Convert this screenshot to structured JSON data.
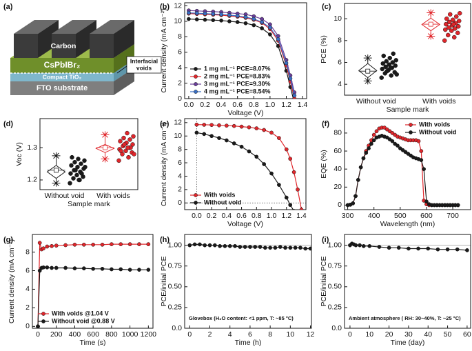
{
  "schematic": {
    "panel": "(a)",
    "layers": [
      "Carbon",
      "CsPbIBr₂",
      "Compact TiO₂",
      "FTO substrate"
    ],
    "callout": [
      "Interfacial",
      "voids"
    ]
  },
  "chart_data": [
    {
      "type": "line",
      "panel": "(b)",
      "xlabel": "Voltage (V)",
      "ylabel": "Current density (mA cm⁻²)",
      "xlim": [
        -0.05,
        1.45
      ],
      "xticks": [
        {
          "value": 0,
          "label": "0.0"
        },
        0.2,
        0.4,
        0.6,
        0.8,
        {
          "value": 1,
          "label": "1.0"
        },
        1.2,
        1.4
      ],
      "ylim": [
        0,
        12.4
      ],
      "yticks": [
        0,
        2,
        4,
        6,
        8,
        10,
        12
      ],
      "legend": "lower left",
      "x": [
        0,
        0.1,
        0.2,
        0.3,
        0.4,
        0.5,
        0.6,
        0.7,
        0.8,
        0.9,
        1.0,
        1.1,
        1.2,
        1.25,
        1.3
      ],
      "series": [
        {
          "name": "1 mg mL⁻¹  PCE=8.07%",
          "color": "#1a1a1a",
          "values": [
            10.3,
            10.25,
            10.2,
            10.15,
            10.1,
            10.0,
            9.9,
            9.75,
            9.5,
            9.1,
            8.3,
            6.8,
            3.6,
            1.5,
            -0.6
          ]
        },
        {
          "name": "2 mg mL⁻¹  PCE=8.83%",
          "color": "#e0262b",
          "values": [
            11.0,
            10.95,
            10.9,
            10.85,
            10.8,
            10.7,
            10.6,
            10.45,
            10.2,
            9.8,
            9.0,
            7.5,
            4.3,
            2.2,
            0.0
          ]
        },
        {
          "name": "3 mg mL⁻¹  PCE=9.30%",
          "color": "#6a3d9a",
          "values": [
            11.4,
            11.35,
            11.3,
            11.25,
            11.2,
            11.1,
            11.0,
            10.9,
            10.65,
            10.3,
            9.6,
            8.1,
            5.0,
            3.0,
            0.8
          ]
        },
        {
          "name": "4 mg mL⁻¹  PCE=8.54%",
          "color": "#3a6fc4",
          "values": [
            11.1,
            11.05,
            11.0,
            10.95,
            10.9,
            10.8,
            10.7,
            10.55,
            10.3,
            9.9,
            9.2,
            7.7,
            4.6,
            2.6,
            0.4
          ]
        }
      ]
    },
    {
      "type": "box",
      "panel": "(c)",
      "xlabel": "Sample mark",
      "ylabel": "PCE (%)",
      "categories": [
        "Without void",
        "With voids"
      ],
      "ylim": [
        3,
        11.4
      ],
      "yticks": [
        4,
        6,
        8,
        10
      ],
      "groups": [
        {
          "color": "#1a1a1a",
          "min": 4.3,
          "q1": 4.6,
          "mean": 5.2,
          "q3": 5.9,
          "max": 6.4,
          "points": [
            4.6,
            4.8,
            5.0,
            5.1,
            5.3,
            5.4,
            5.5,
            5.6,
            5.7,
            5.8,
            5.9,
            6.0,
            6.1,
            6.2,
            6.4,
            6.6,
            6.8,
            5.2,
            4.9,
            5.5
          ]
        },
        {
          "color": "#e0262b",
          "min": 8.4,
          "q1": 8.9,
          "mean": 9.5,
          "q3": 10.05,
          "max": 10.55,
          "points": [
            8.0,
            8.3,
            8.5,
            8.7,
            8.9,
            9.0,
            9.1,
            9.2,
            9.3,
            9.4,
            9.5,
            9.6,
            9.7,
            9.8,
            9.9,
            10.0,
            10.2,
            10.4,
            10.5,
            9.5
          ]
        }
      ]
    },
    {
      "type": "box",
      "panel": "(d)",
      "xlabel": "Sample mark",
      "ylabel": "Voc (V)",
      "categories": [
        "Without void",
        "With voids"
      ],
      "ylim": [
        1.17,
        1.39
      ],
      "yticks": [
        1.2,
        1.3
      ],
      "groups": [
        {
          "color": "#1a1a1a",
          "min": 1.19,
          "q1": 1.205,
          "mean": 1.23,
          "q3": 1.245,
          "max": 1.275,
          "points": [
            1.19,
            1.2,
            1.205,
            1.21,
            1.215,
            1.22,
            1.225,
            1.23,
            1.235,
            1.24,
            1.245,
            1.25,
            1.255,
            1.26,
            1.265,
            1.27,
            1.22,
            1.23,
            1.24,
            1.2
          ]
        },
        {
          "color": "#e0262b",
          "min": 1.265,
          "q1": 1.285,
          "mean": 1.3,
          "q3": 1.31,
          "max": 1.34,
          "points": [
            1.26,
            1.27,
            1.28,
            1.285,
            1.29,
            1.295,
            1.3,
            1.305,
            1.31,
            1.315,
            1.32,
            1.325,
            1.33,
            1.335,
            1.345,
            1.29,
            1.3,
            1.31,
            1.28,
            1.3
          ]
        }
      ]
    },
    {
      "type": "line",
      "panel": "(e)",
      "xlabel": "Voltage (V)",
      "ylabel": "Current density (mA cm⁻²)",
      "xlim": [
        -0.16,
        1.46
      ],
      "xticks": [
        {
          "value": 0,
          "label": "0.0"
        },
        0.2,
        0.4,
        0.6,
        0.8,
        {
          "value": 1,
          "label": "1.0"
        },
        1.2,
        1.4
      ],
      "ylim": [
        -1,
        12.6
      ],
      "yticks": [
        0,
        2,
        4,
        6,
        8,
        10,
        12
      ],
      "legend": "lower left",
      "hline": 0,
      "vline": 0,
      "x": [
        0,
        0.1,
        0.2,
        0.3,
        0.4,
        0.5,
        0.6,
        0.7,
        0.8,
        0.9,
        1.0,
        1.1,
        1.2,
        1.25,
        1.3,
        1.35,
        1.4
      ],
      "series": [
        {
          "name": "With voids",
          "color": "#e0262b",
          "values": [
            11.7,
            11.68,
            11.65,
            11.6,
            11.55,
            11.5,
            11.4,
            11.3,
            11.15,
            10.9,
            10.5,
            9.7,
            8.0,
            6.6,
            4.6,
            2.0,
            -1.0
          ]
        },
        {
          "name": "Without void",
          "color": "#1a1a1a",
          "values": [
            10.5,
            10.3,
            10.0,
            9.7,
            9.35,
            8.9,
            8.4,
            7.7,
            6.9,
            5.8,
            4.4,
            2.7,
            0.8,
            -0.3,
            -1.2,
            null,
            null
          ]
        }
      ]
    },
    {
      "type": "line",
      "panel": "(f)",
      "xlabel": "Wavelength (nm)",
      "ylabel": "EQE (%)",
      "xlim": [
        288,
        768
      ],
      "xticks": [
        300,
        400,
        500,
        600,
        700
      ],
      "ylim": [
        -5,
        96
      ],
      "yticks": [
        0,
        20,
        40,
        60,
        80
      ],
      "legend": "upper right",
      "x": [
        300,
        310,
        320,
        330,
        340,
        350,
        360,
        370,
        380,
        390,
        400,
        410,
        420,
        430,
        440,
        450,
        460,
        470,
        480,
        490,
        500,
        510,
        520,
        530,
        540,
        550,
        560,
        570,
        580,
        590,
        600,
        610,
        620,
        630,
        640,
        650,
        660,
        670,
        680,
        690,
        700,
        710,
        720
      ],
      "series": [
        {
          "name": "With voids",
          "color": "#e0262b",
          "values": [
            0,
            0.5,
            2,
            10,
            28,
            42,
            52,
            60,
            66,
            72,
            78,
            82,
            85,
            86,
            86,
            84,
            82,
            80,
            78,
            76,
            75,
            74,
            73,
            72,
            72,
            72,
            72,
            71,
            60,
            5,
            1,
            0,
            0,
            0,
            0,
            0,
            0,
            0,
            0,
            0,
            0,
            0,
            0
          ]
        },
        {
          "name": "Without void",
          "color": "#1a1a1a",
          "values": [
            0,
            0.5,
            2,
            10,
            28,
            42,
            52,
            58,
            63,
            68,
            72,
            75,
            76,
            77,
            76,
            75,
            73,
            71,
            68,
            66,
            63,
            61,
            59,
            57,
            55,
            53,
            52,
            51,
            50,
            40,
            4,
            1,
            0,
            0,
            0,
            0,
            0,
            0,
            0,
            0,
            0,
            0,
            0
          ]
        }
      ]
    },
    {
      "type": "line",
      "panel": "(g)",
      "xlabel": "Time (s)",
      "ylabel": "Current density (mA cm⁻²)",
      "xlim": [
        -60,
        1250
      ],
      "xticks": [
        0,
        200,
        400,
        600,
        800,
        1000,
        1200
      ],
      "ylim": [
        -0.2,
        9.9
      ],
      "yticks": [
        0,
        2,
        4,
        6,
        8
      ],
      "legend": "lower left",
      "x": [
        0,
        20,
        40,
        60,
        100,
        150,
        200,
        300,
        400,
        500,
        600,
        700,
        800,
        900,
        1000,
        1100,
        1200
      ],
      "series": [
        {
          "name": "With voids @1.04 V",
          "color": "#e0262b",
          "values": [
            0,
            9.0,
            8.3,
            8.4,
            8.6,
            8.65,
            8.7,
            8.75,
            8.8,
            8.8,
            8.8,
            8.8,
            8.85,
            8.85,
            8.85,
            8.85,
            8.85
          ]
        },
        {
          "name": "Without void @0.88 V",
          "color": "#1a1a1a",
          "values": [
            0,
            6.0,
            6.3,
            6.35,
            6.35,
            6.3,
            6.3,
            6.3,
            6.25,
            6.25,
            6.2,
            6.2,
            6.15,
            6.15,
            6.1,
            6.1,
            6.1
          ]
        }
      ]
    },
    {
      "type": "line",
      "panel": "(h)",
      "xlabel": "Time (h)",
      "ylabel": "PCE/initial PCE",
      "annotation": "Glovebox (H₂O content: <1 ppm, T: ~85 °C)",
      "xlim": [
        -0.5,
        12.1
      ],
      "xticks": [
        0,
        2,
        4,
        6,
        8,
        10,
        12
      ],
      "ylim": [
        0,
        1.13
      ],
      "yticks": [
        {
          "value": 0,
          "label": "0.0"
        },
        0.25,
        {
          "value": 0.5,
          "label": "0.50"
        },
        0.75,
        {
          "value": 1,
          "label": "1.00"
        }
      ],
      "hline": 1,
      "x": [
        0,
        0.5,
        1,
        1.5,
        2,
        2.5,
        3,
        3.5,
        4,
        4.5,
        5,
        5.5,
        6,
        6.5,
        7,
        7.5,
        8,
        8.5,
        9,
        9.5,
        10,
        10.5,
        11,
        11.5,
        12
      ],
      "series": [
        {
          "color": "#1a1a1a",
          "values": [
            1.0,
            1.01,
            1.01,
            1.0,
            1.0,
            1.0,
            0.99,
            0.99,
            0.99,
            0.99,
            0.98,
            0.98,
            0.98,
            0.98,
            0.98,
            0.97,
            0.97,
            0.97,
            0.98,
            0.97,
            0.97,
            0.97,
            0.97,
            0.96,
            0.96
          ]
        }
      ]
    },
    {
      "type": "line",
      "panel": "(i)",
      "xlabel": "Time (day)",
      "ylabel": "PCE/initial PCE",
      "annotation": "Ambient atmosphere ( RH: 30~40%, T: ~25 °C)",
      "xlim": [
        -2.8,
        61.8
      ],
      "xticks": [
        0,
        10,
        20,
        30,
        40,
        50,
        60
      ],
      "ylim": [
        0,
        1.13
      ],
      "yticks": [
        {
          "value": 0,
          "label": "0.0"
        },
        0.25,
        {
          "value": 0.5,
          "label": "0.50"
        },
        0.75,
        {
          "value": 1,
          "label": "1.00"
        }
      ],
      "hline": 1,
      "x": [
        0,
        1,
        2,
        3,
        5,
        7,
        10,
        15,
        20,
        25,
        30,
        35,
        40,
        45,
        50,
        55,
        60
      ],
      "series": [
        {
          "color": "#1a1a1a",
          "values": [
            1.0,
            1.02,
            1.01,
            1.0,
            1.0,
            0.99,
            0.99,
            0.98,
            0.97,
            0.97,
            0.96,
            0.96,
            0.96,
            0.95,
            0.95,
            0.95,
            0.94
          ]
        }
      ]
    }
  ]
}
